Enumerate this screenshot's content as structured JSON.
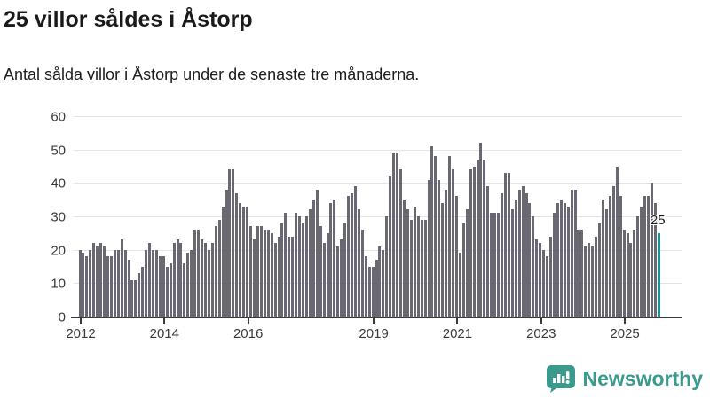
{
  "header": {
    "title": "25 villor såldes i Åstorp",
    "subtitle": "Antal sålda villor i Åstorp under de senaste tre månaderna."
  },
  "footer": {
    "brand": "Newsworthy",
    "brand_color": "#3a9b8d",
    "logo_icon": "speech-bubble-bar-chart-icon"
  },
  "chart_data": {
    "type": "bar",
    "title": "25 villor såldes i Åstorp",
    "subtitle": "Antal sålda villor i Åstorp under de senaste tre månaderna.",
    "xlabel": "",
    "ylabel": "",
    "x_unit": "month",
    "start_year": 2012,
    "start_month": 1,
    "values": [
      20,
      19,
      18,
      20,
      22,
      21,
      22,
      21,
      18,
      18,
      20,
      20,
      23,
      20,
      17,
      11,
      11,
      13,
      15,
      20,
      22,
      20,
      20,
      18,
      18,
      15,
      16,
      22,
      23,
      22,
      16,
      19,
      20,
      26,
      26,
      23,
      22,
      20,
      22,
      27,
      29,
      33,
      38,
      44,
      44,
      37,
      34,
      33,
      33,
      27,
      23,
      27,
      27,
      26,
      26,
      25,
      22,
      24,
      28,
      31,
      24,
      24,
      31,
      30,
      28,
      30,
      32,
      35,
      38,
      27,
      22,
      25,
      34,
      35,
      21,
      23,
      28,
      36,
      37,
      39,
      32,
      26,
      18,
      15,
      15,
      17,
      21,
      20,
      30,
      42,
      49,
      49,
      44,
      35,
      32,
      29,
      33,
      30,
      29,
      29,
      41,
      51,
      48,
      41,
      34,
      38,
      48,
      44,
      36,
      19,
      28,
      32,
      44,
      45,
      47,
      52,
      47,
      39,
      31,
      31,
      31,
      37,
      43,
      43,
      32,
      35,
      38,
      39,
      37,
      34,
      30,
      23,
      22,
      20,
      18,
      24,
      31,
      34,
      35,
      34,
      33,
      38,
      38,
      26,
      26,
      21,
      22,
      21,
      24,
      28,
      35,
      32,
      36,
      39,
      45,
      36,
      26,
      25,
      22,
      26,
      30,
      33,
      36,
      36,
      40,
      34,
      25
    ],
    "highlight": {
      "index_from_end": 1,
      "value": 25,
      "label": "25",
      "color": "#18959b"
    },
    "bar_color": "#6a6973",
    "y_ticks": [
      0,
      10,
      20,
      30,
      40,
      50,
      60
    ],
    "ylim": [
      0,
      60
    ],
    "x_tick_years": [
      2012,
      2014,
      2016,
      2019,
      2021,
      2023,
      2025
    ],
    "grid": "horizontal",
    "legend": "none"
  }
}
